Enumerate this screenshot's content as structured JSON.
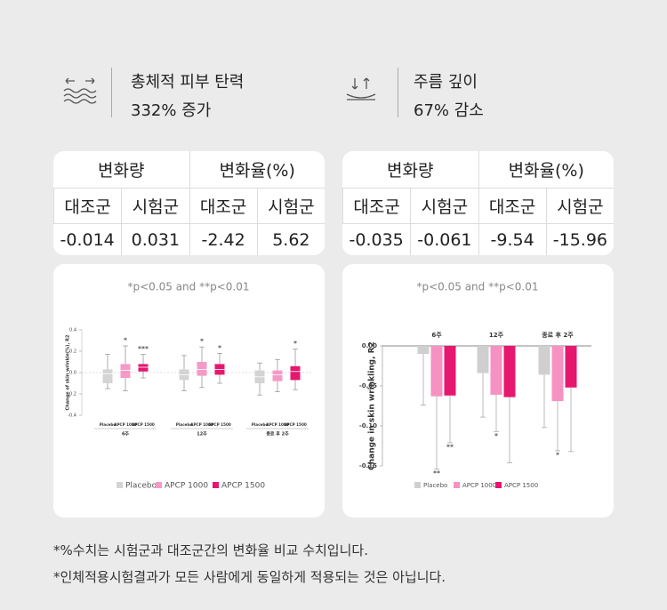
{
  "highlights": [
    {
      "title": "총체적 피부 탄력",
      "value": "332% 증가"
    },
    {
      "title": "주름 깊이",
      "value": "67% 감소"
    }
  ],
  "tables": [
    {
      "header": [
        "변화량",
        "변화율(%)"
      ],
      "subheader": [
        "대조군",
        "시험군",
        "대조군",
        "시험군"
      ],
      "values": [
        -0.014,
        0.031,
        -2.42,
        5.62
      ]
    },
    {
      "header": [
        "변화량",
        "변화율(%)"
      ],
      "subheader": [
        "대조군",
        "시험군",
        "대조군",
        "시험군"
      ],
      "values": [
        -0.035,
        -0.061,
        -9.54,
        -15.96
      ]
    }
  ],
  "charts": [
    {
      "type": "box",
      "note": "*p<0.05 and **p<0.01",
      "y_label": "Change of skin wrinkle(%), R2",
      "categories": [
        "6주",
        "12주",
        "종료 후 2주"
      ],
      "ylim": [
        -0.4,
        0.4
      ],
      "yticks": [
        -0.4,
        -0.2,
        {
          "value": 0,
          "label": "0.0"
        },
        0.2,
        0.4
      ],
      "series": [
        {
          "name": "Placebo",
          "color": "#d4d4d4",
          "boxes": [
            {
              "min": -0.15,
              "q1": -0.1,
              "median": -0.01,
              "q3": 0.03,
              "max": 0.17
            },
            {
              "min": -0.17,
              "q1": -0.07,
              "median": -0.02,
              "q3": 0.03,
              "max": 0.16
            },
            {
              "min": -0.21,
              "q1": -0.1,
              "median": -0.04,
              "q3": 0.02,
              "max": 0.09
            }
          ],
          "significance": [
            null,
            null,
            null
          ]
        },
        {
          "name": "APCP 1000",
          "color": "#f59ac6",
          "boxes": [
            {
              "min": -0.17,
              "q1": -0.05,
              "median": 0.02,
              "q3": 0.08,
              "max": 0.25
            },
            {
              "min": -0.14,
              "q1": -0.03,
              "median": 0.03,
              "q3": 0.1,
              "max": 0.24
            },
            {
              "min": -0.18,
              "q1": -0.08,
              "median": -0.02,
              "q3": 0.02,
              "max": 0.12
            }
          ],
          "significance": [
            "*",
            "*",
            null
          ]
        },
        {
          "name": "APCP 1500",
          "color": "#e5176f",
          "boxes": [
            {
              "min": -0.05,
              "q1": 0.01,
              "median": 0.05,
              "q3": 0.08,
              "max": 0.17
            },
            {
              "min": -0.1,
              "q1": -0.02,
              "median": 0.03,
              "q3": 0.08,
              "max": 0.18
            },
            {
              "min": -0.16,
              "q1": -0.07,
              "median": 0.01,
              "q3": 0.06,
              "max": 0.22
            }
          ],
          "significance": [
            "***",
            "*",
            "*"
          ]
        }
      ]
    },
    {
      "type": "bar",
      "note": "*p<0.05 and **p<0.01",
      "y_label": "Change in skin wrinkling, R2",
      "categories": [
        "6주",
        "12주",
        "종료 후 2주"
      ],
      "ylim": [
        -0.15,
        0
      ],
      "yticks": [
        -0.15,
        {
          "value": -0.1,
          "label": "-0.10"
        },
        -0.05,
        {
          "value": 0,
          "label": "0.00"
        }
      ],
      "series": [
        {
          "name": "Placebo",
          "color": "#cfcfcf",
          "values": [
            -0.01,
            -0.034,
            -0.036
          ],
          "errors": [
            0.064,
            0.055,
            0.066
          ],
          "significance": [
            null,
            null,
            null
          ]
        },
        {
          "name": "APCP 1000",
          "color": "#f592c2",
          "values": [
            -0.063,
            -0.061,
            -0.069
          ],
          "errors": [
            0.091,
            0.046,
            0.062
          ],
          "significance": [
            "**",
            "*",
            "*"
          ]
        },
        {
          "name": "APCP 1500",
          "color": "#e5176f",
          "values": [
            -0.062,
            -0.064,
            -0.052
          ],
          "errors": [
            0.059,
            0.082,
            0.08
          ],
          "significance": [
            "**",
            null,
            null
          ]
        }
      ]
    }
  ],
  "footnotes": [
    "*%수치는 시험군과 대조군간의 변화율 비교 수치입니다.",
    "*인체적용시험결과가 모든 사람에게 동일하게 적용되는 것은 아닙니다."
  ]
}
